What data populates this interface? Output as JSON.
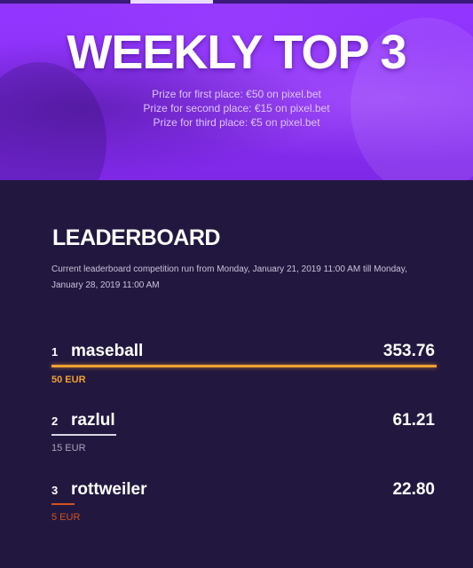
{
  "hero": {
    "title": "WEEKLY TOP 3",
    "prizes": [
      "Prize for first place: €50 on pixel.bet",
      "Prize for second place: €15 on pixel.bet",
      "Prize for third place: €5 on pixel.bet"
    ]
  },
  "leaderboard": {
    "title": "LEADERBOARD",
    "description": "Current leaderboard competition run from Monday, January 21, 2019 11:00 AM till Monday, January 28, 2019 11:00 AM",
    "entries": [
      {
        "rank": "1",
        "name": "maseball",
        "score": "353.76",
        "prize": "50 EUR",
        "color": "#f0a030"
      },
      {
        "rank": "2",
        "name": "razlul",
        "score": "61.21",
        "prize": "15 EUR",
        "color": "#d6d6e0"
      },
      {
        "rank": "3",
        "name": "rottweiler",
        "score": "22.80",
        "prize": "5 EUR",
        "color": "#d2521e"
      }
    ]
  },
  "colors": {
    "hero_purple": "#8a2ff5",
    "board_background": "#22183f",
    "gold": "#f0a030",
    "silver": "#d6d6e0",
    "bronze": "#d2521e"
  }
}
